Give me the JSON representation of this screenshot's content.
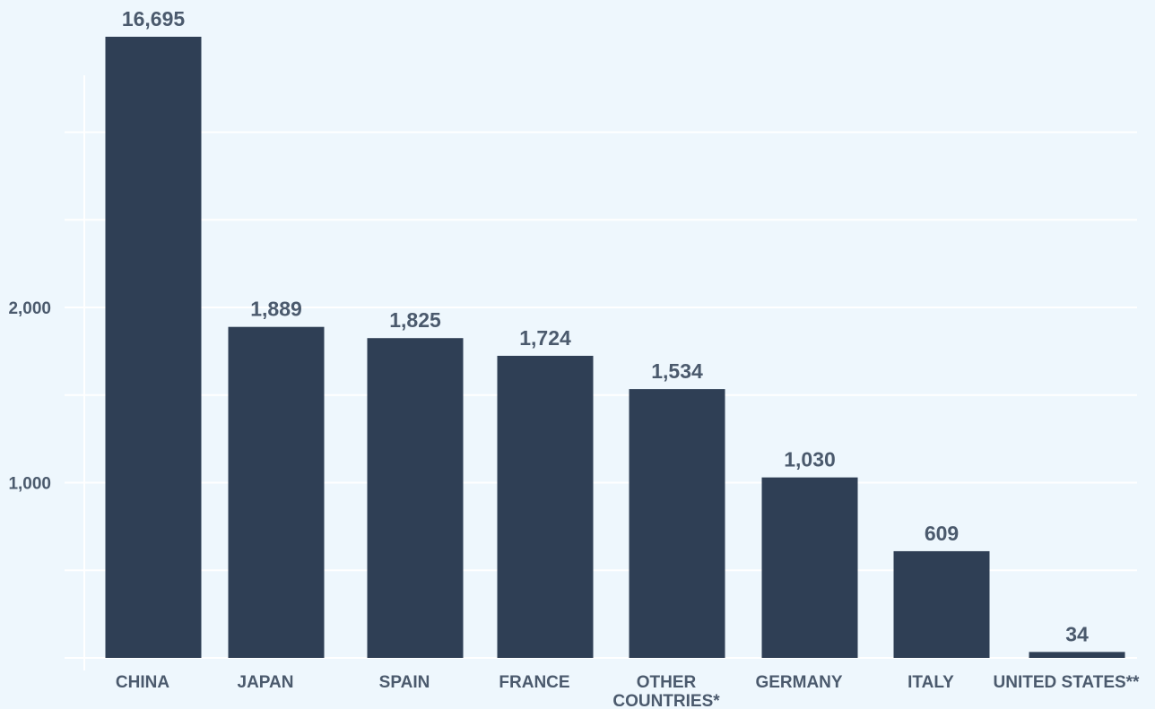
{
  "chart_data": {
    "type": "bar",
    "title": "",
    "xlabel": "",
    "ylabel": "",
    "categories": [
      "CHINA",
      "JAPAN",
      "SPAIN",
      "FRANCE",
      "OTHER COUNTRIES*",
      "GERMANY",
      "ITALY",
      "UNITED STATES**"
    ],
    "category_lines": [
      [
        "CHINA"
      ],
      [
        "JAPAN"
      ],
      [
        "SPAIN"
      ],
      [
        "FRANCE"
      ],
      [
        "OTHER",
        "COUNTRIES*"
      ],
      [
        "GERMANY"
      ],
      [
        "ITALY"
      ],
      [
        "UNITED STATES**"
      ]
    ],
    "values": [
      16695,
      1889,
      1825,
      1724,
      1534,
      1030,
      609,
      34
    ],
    "value_labels": [
      "16,695",
      "1,889",
      "1,825",
      "1,724",
      "1,534",
      "1,030",
      "609",
      "34"
    ],
    "y_ticks": [
      1000,
      2000
    ],
    "y_tick_labels": [
      "1,000",
      "2,000"
    ],
    "ylim": [
      0,
      3500
    ],
    "grid": true,
    "axis_break": "tallest bar (CHINA) is truncated at the top of the plot",
    "bar_color": "#2f3f55",
    "background_color": "#eef7fd",
    "grid_color": "#ffffff",
    "label_color": "#4b5a6d"
  }
}
